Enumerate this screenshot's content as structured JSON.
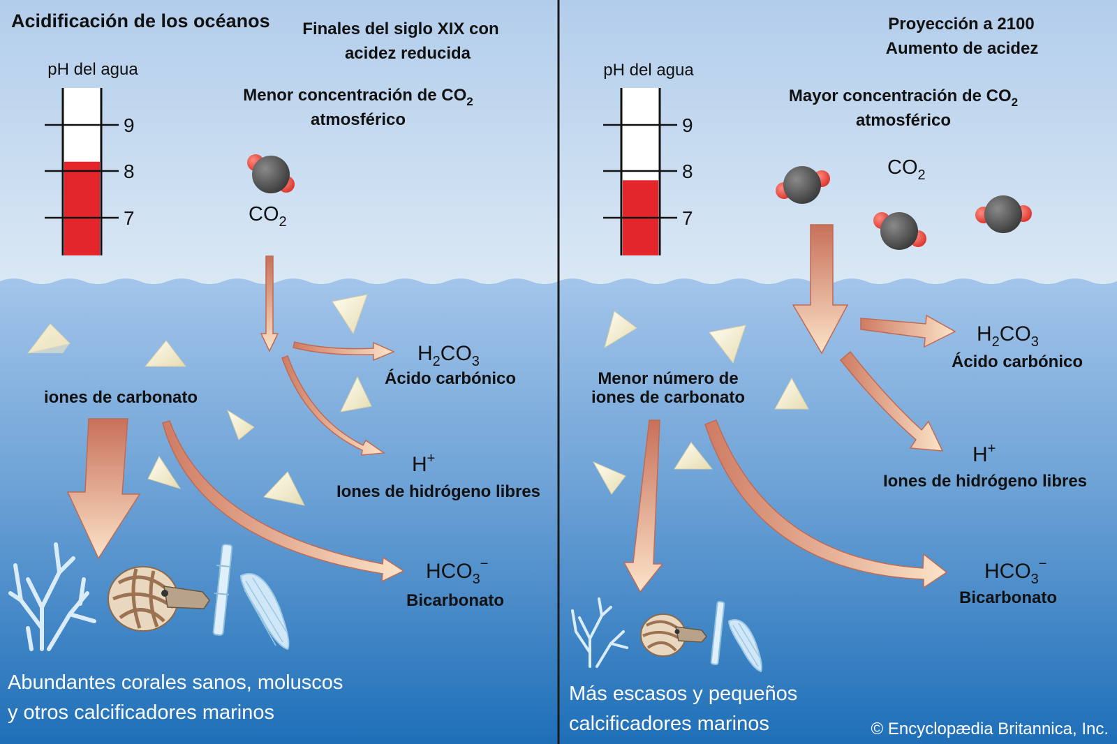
{
  "title": "Acidificación de los océanos",
  "colors": {
    "sky_top": "#b2cdeb",
    "sky_bottom": "#dce9f5",
    "water_top": "#a3c5ea",
    "water_bottom": "#1e6fb8",
    "mercury": "#e3262b",
    "arrow": "#d8876a",
    "arrow_light": "#fbe3c8"
  },
  "left": {
    "header_line1": "Finales del siglo XIX con",
    "header_line2": "acidez reducida",
    "co2_label_line1": "Menor concentración de CO",
    "co2_label_sub": "2",
    "co2_label_line2": "atmosférico",
    "ph_label": "pH del agua",
    "ph_ticks": [
      "9",
      "8",
      "7"
    ],
    "ph_value": 8.2,
    "co2_molecule": "CO",
    "co2_sub": "2",
    "carbonate_label": "iones de carbonato",
    "h2co3": {
      "p1": "H",
      "s1": "2",
      "p2": "CO",
      "s2": "3"
    },
    "acid_name": "Ácido carbónico",
    "hplus": {
      "base": "H",
      "sup": "+"
    },
    "hydrogen_name": "Iones de hidrógeno libres",
    "hco3": {
      "base": "HCO",
      "sub": "3",
      "sup": "−"
    },
    "bicarbonate_name": "Bicarbonato",
    "caption_line1": "Abundantes corales sanos, moluscos",
    "caption_line2": "y otros calcificadores marinos"
  },
  "right": {
    "header_line1": "Proyección a 2100",
    "header_line2": "Aumento de acidez",
    "co2_label_line1": "Mayor concentración de CO",
    "co2_label_sub": "2",
    "co2_label_line2": "atmosférico",
    "ph_label": "pH del agua",
    "ph_ticks": [
      "9",
      "8",
      "7"
    ],
    "ph_value": 7.8,
    "co2_molecule": "CO",
    "co2_sub": "2",
    "carbonate_label_line1": "Menor número de",
    "carbonate_label_line2": "iones de carbonato",
    "h2co3": {
      "p1": "H",
      "s1": "2",
      "p2": "CO",
      "s2": "3"
    },
    "acid_name": "Ácido carbónico",
    "hplus": {
      "base": "H",
      "sup": "+"
    },
    "hydrogen_name": "Iones de hidrógeno libres",
    "hco3": {
      "base": "HCO",
      "sub": "3",
      "sup": "−"
    },
    "bicarbonate_name": "Bicarbonato",
    "caption_line1": "Más escasos y pequeños",
    "caption_line2": "calcificadores marinos"
  },
  "copyright": "© Encyclopædia Britannica, Inc."
}
